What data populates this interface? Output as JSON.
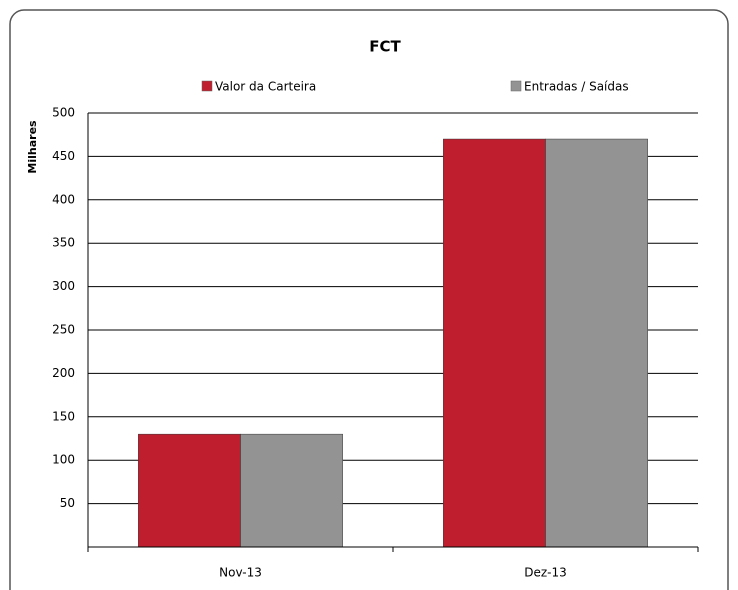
{
  "chart_data": {
    "type": "bar",
    "title": "FCT",
    "y_label": "Milhares",
    "categories": [
      "Nov-13",
      "Dez-13"
    ],
    "series": [
      {
        "name": "Valor da Carteira",
        "color": "#be1e2d",
        "values": [
          130,
          470
        ]
      },
      {
        "name": "Entradas / Saídas",
        "color": "#939393",
        "values": [
          130,
          470
        ]
      }
    ],
    "ylim": [
      0,
      500
    ],
    "yticks": [
      50,
      100,
      150,
      200,
      250,
      300,
      350,
      400,
      450,
      500
    ],
    "grid": true
  }
}
